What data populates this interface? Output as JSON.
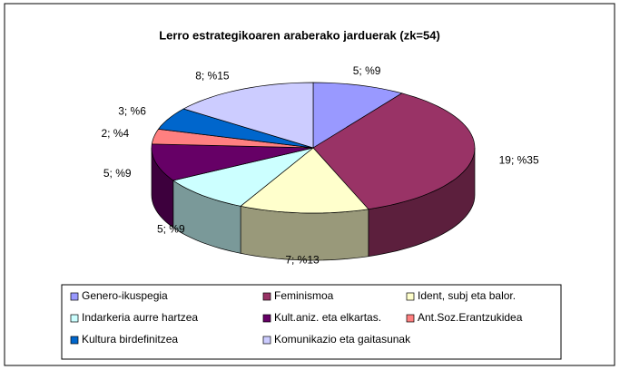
{
  "chart_data": {
    "type": "pie3d",
    "title": "Lerro estrategikoaren araberako jarduerak (zk=54)",
    "categories": [
      "Genero-ikuspegia",
      "Feminismoa",
      "Ident, subj eta balor.",
      "Indarkeria aurre hartzea",
      "Kult.aniz. eta elkartas.",
      "Ant.Soz.Erantzukidea",
      "Kultura birdefinitzea",
      "Komunikazio eta gaitasunak"
    ],
    "values": [
      5,
      19,
      7,
      5,
      5,
      2,
      3,
      8
    ],
    "value_labels": [
      "5; %9",
      "19; %35",
      "7; %13",
      "5; %9",
      "5; %9",
      "2; %4",
      "3; %6",
      "8; %15"
    ],
    "colors": [
      "#9999ff",
      "#993366",
      "#ffffcc",
      "#ccffff",
      "#660066",
      "#ff8080",
      "#0066cc",
      "#ccccff"
    ],
    "legend": "bottom"
  }
}
